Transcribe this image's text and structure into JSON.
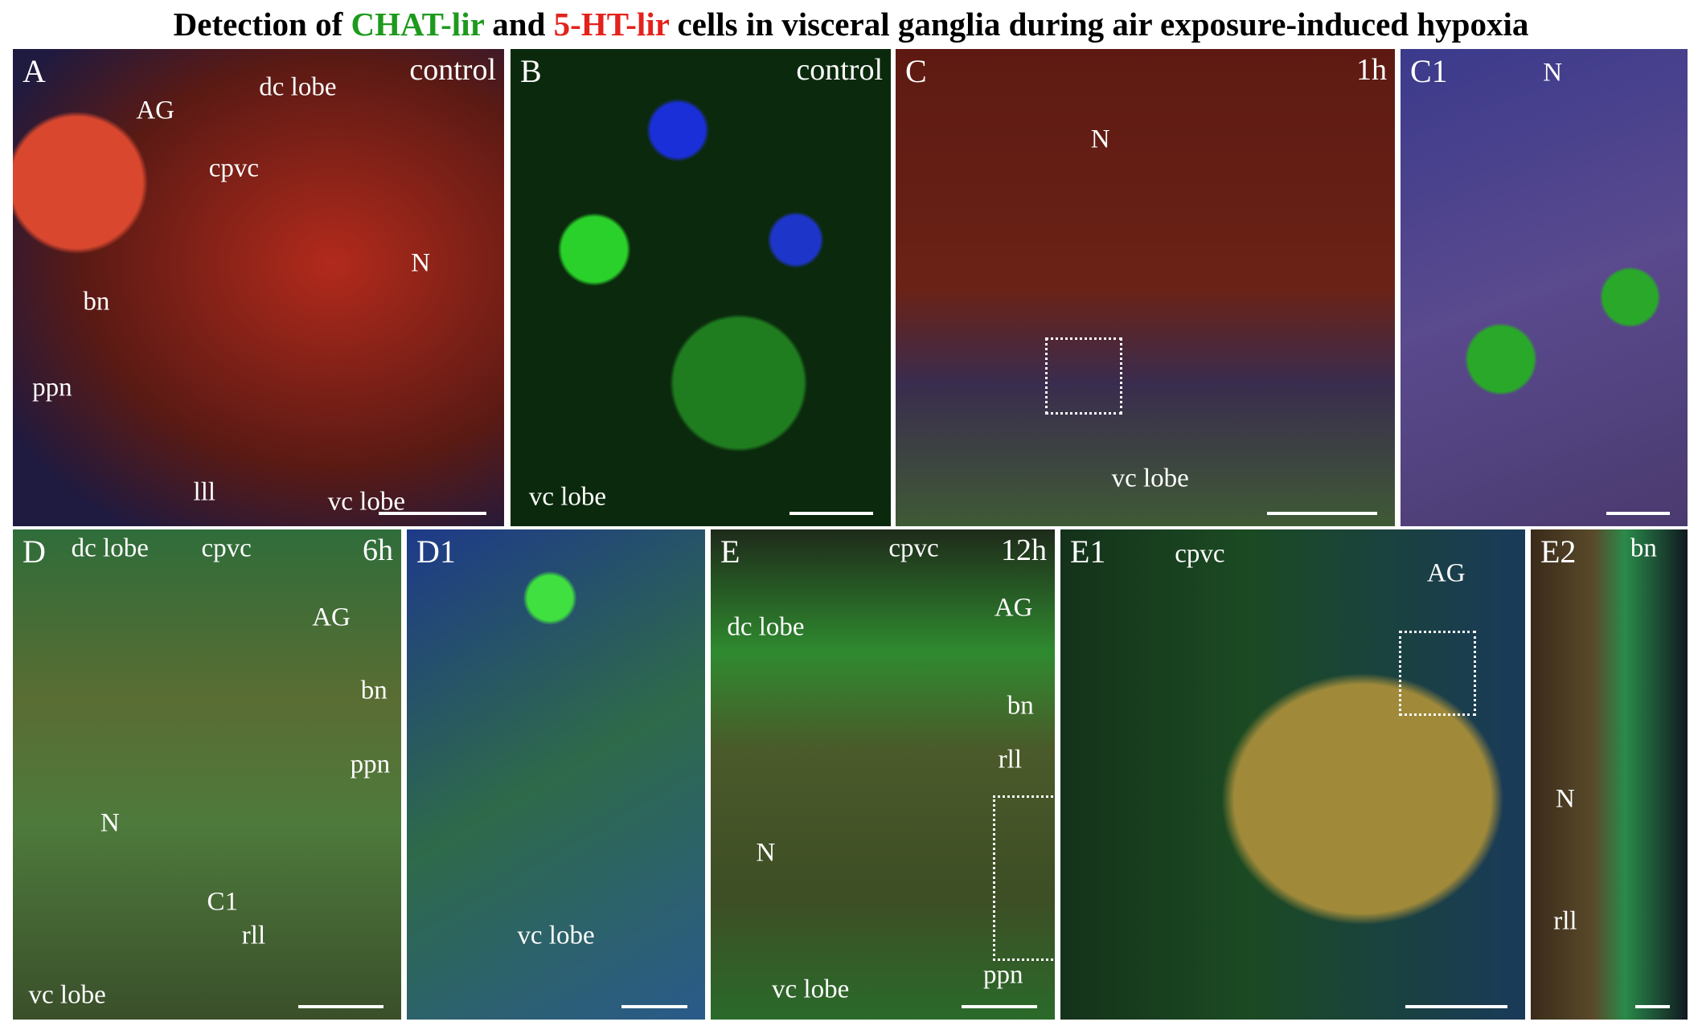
{
  "title": {
    "parts": [
      "Detection of",
      "CHAT-lir",
      "and",
      "5-HT-lir",
      "cells in visceral ganglia during air exposure-induced hypoxia"
    ]
  },
  "panels": [
    {
      "label": "A",
      "tag": "control",
      "annotations": [
        "AG",
        "dc lobe",
        "cpvc",
        "N",
        "bn",
        "ppn",
        "lll",
        "vc lobe"
      ]
    },
    {
      "label": "B",
      "tag": "control",
      "annotations": [
        "vc lobe"
      ]
    },
    {
      "label": "C",
      "tag": "1h",
      "annotations": [
        "N",
        "vc lobe"
      ]
    },
    {
      "label": "C1",
      "annotations": [
        "N"
      ]
    },
    {
      "label": "D",
      "tag": "6h",
      "annotations": [
        "dc lobe",
        "cpvc",
        "AG",
        "bn",
        "ppn",
        "N",
        "C1",
        "rll",
        "vc lobe"
      ]
    },
    {
      "label": "D1",
      "annotations": [
        "vc lobe"
      ]
    },
    {
      "label": "E",
      "tag": "12h",
      "annotations": [
        "cpvc",
        "AG",
        "dc lobe",
        "bn",
        "rll",
        "N",
        "ppn",
        "vc lobe"
      ]
    },
    {
      "label": "E1",
      "annotations": [
        "cpvc",
        "AG"
      ]
    },
    {
      "label": "E2",
      "annotations": [
        "bn",
        "N",
        "rll"
      ]
    }
  ]
}
